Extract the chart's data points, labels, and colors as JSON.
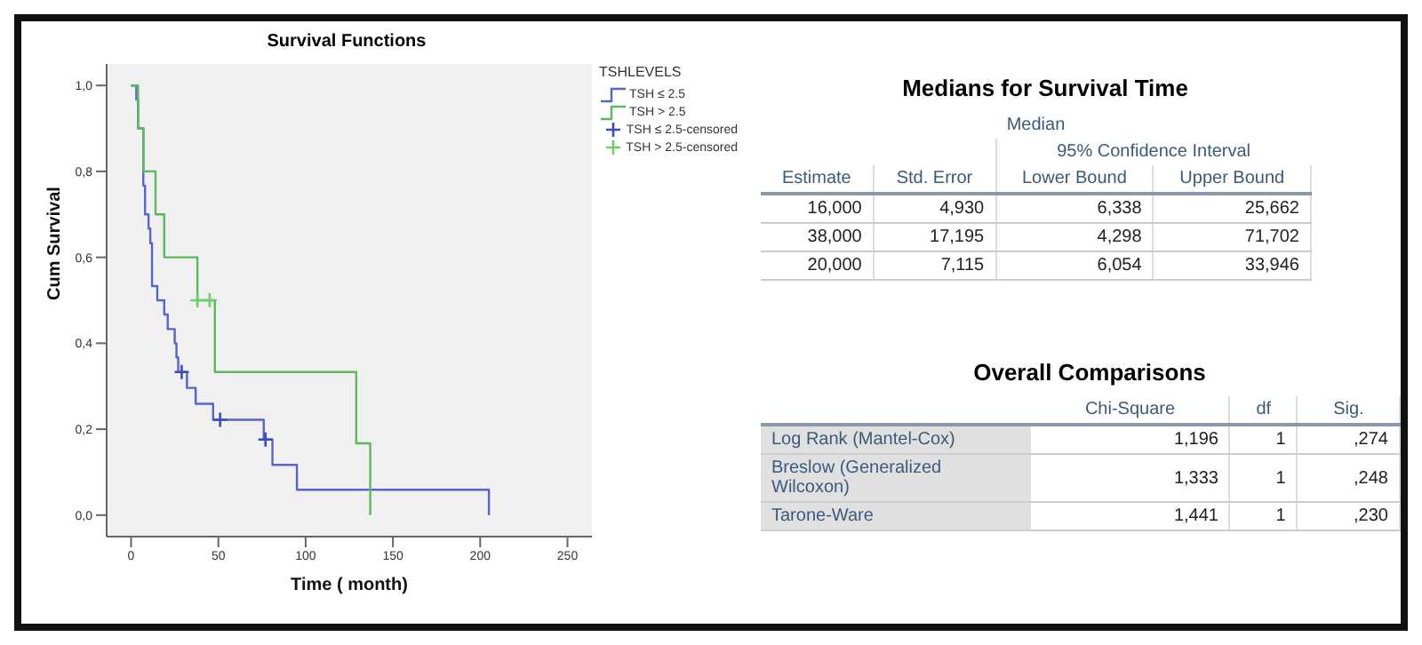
{
  "chart_data": [
    {
      "type": "step",
      "title": "Survival Functions",
      "xlabel": "Time ( month)",
      "ylabel": "Cum Survival",
      "legend_title": "TSHLEVELS",
      "legend": "top right",
      "xlim": [
        -14,
        264
      ],
      "xticks": [
        0,
        50,
        100,
        150,
        200,
        250
      ],
      "ylim": [
        -0.05,
        1.05
      ],
      "yticks": [
        {
          "value": 0,
          "label": "0,0"
        },
        {
          "value": 0.2,
          "label": "0,2"
        },
        {
          "value": 0.4,
          "label": "0,4"
        },
        {
          "value": 0.6,
          "label": "0,6"
        },
        {
          "value": 0.8,
          "label": "0,8"
        },
        {
          "value": 1,
          "label": "1,0"
        }
      ],
      "series": [
        {
          "name": "TSH ≤ 2.5",
          "type": "step",
          "color": "#5566c8",
          "x": [
            0,
            3,
            4,
            7,
            8,
            10,
            11,
            12,
            15,
            19,
            21,
            25,
            26,
            27,
            32,
            37,
            47,
            76,
            81,
            95,
            205
          ],
          "values": [
            1,
            0.967,
            0.9,
            0.767,
            0.7,
            0.667,
            0.633,
            0.533,
            0.5,
            0.467,
            0.433,
            0.4,
            0.367,
            0.333,
            0.296,
            0.259,
            0.222,
            0.176,
            0.117,
            0.059,
            0
          ]
        },
        {
          "name": "TSH > 2.5",
          "type": "step",
          "color": "#5cb85c",
          "x": [
            0,
            4,
            7,
            14,
            19,
            38,
            48,
            129,
            137
          ],
          "values": [
            1,
            0.9,
            0.8,
            0.7,
            0.6,
            0.5,
            0.333,
            0.167,
            0
          ]
        },
        {
          "name": "TSH ≤ 2.5-censored",
          "type": "scatter",
          "marker": "cross",
          "color": "#3a4db8",
          "x": [
            29,
            51,
            77
          ],
          "values": [
            0.333,
            0.222,
            0.176
          ]
        },
        {
          "name": "TSH > 2.5-censored",
          "type": "scatter",
          "marker": "cross",
          "color": "#6ccf6c",
          "x": [
            38,
            45
          ],
          "values": [
            0.5,
            0.5
          ]
        }
      ]
    },
    {
      "type": "other",
      "title": "Medians for Survival Time",
      "annotations": [
        "Median",
        "95% Confidence Interval"
      ],
      "categories": [
        "Estimate",
        "Std. Error",
        "Lower Bound",
        "Upper Bound"
      ],
      "cell_labels": [
        [
          "16,000",
          "4,930",
          "6,338",
          "25,662"
        ],
        [
          "38,000",
          "17,195",
          "4,298",
          "71,702"
        ],
        [
          "20,000",
          "7,115",
          "6,054",
          "33,946"
        ]
      ]
    },
    {
      "type": "other",
      "title": "Overall Comparisons",
      "categories": [
        "Chi-Square",
        "df",
        "Sig."
      ],
      "y_categories": [
        "Log Rank (Mantel-Cox)",
        "Breslow (Generalized Wilcoxon)",
        "Tarone-Ware"
      ],
      "cell_labels": [
        [
          "1,196",
          "1",
          ",274"
        ],
        [
          "1,333",
          "1",
          ",248"
        ],
        [
          "1,441",
          "1",
          ",230"
        ]
      ]
    }
  ]
}
